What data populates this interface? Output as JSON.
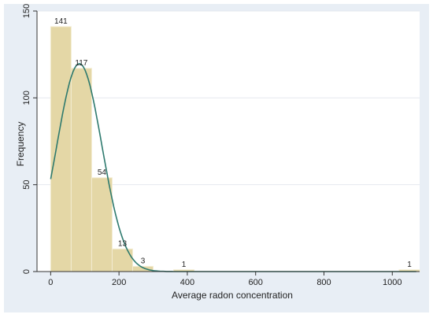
{
  "colors": {
    "panel_bg": "#e8eef5",
    "plot_bg": "#ffffff",
    "bar_fill": "#e4d7a6",
    "bar_stroke": "#f3ecd2",
    "curve": "#2e7a6e",
    "grid": "#e4e8ee",
    "axis": "#333333"
  },
  "chart_data": {
    "type": "bar",
    "title": "",
    "xlabel": "Average radon concentration",
    "ylabel": "Frequency",
    "xlim": [
      -40,
      1080
    ],
    "ylim": [
      0,
      150
    ],
    "x_ticks": [
      0,
      200,
      400,
      600,
      800,
      1000
    ],
    "y_ticks": [
      0,
      50,
      100,
      150
    ],
    "grid": true,
    "bin_width": 60,
    "bins": [
      {
        "start": 0,
        "count": 141,
        "label": "141"
      },
      {
        "start": 60,
        "count": 117,
        "label": "117"
      },
      {
        "start": 120,
        "count": 54,
        "label": "54"
      },
      {
        "start": 180,
        "count": 13,
        "label": "13"
      },
      {
        "start": 240,
        "count": 3,
        "label": "3"
      },
      {
        "start": 360,
        "count": 1,
        "label": "1"
      },
      {
        "start": 1020,
        "count": 1,
        "label": "1"
      }
    ],
    "normal_overlay": {
      "mean": 84,
      "sd": 66,
      "n": 330
    }
  }
}
